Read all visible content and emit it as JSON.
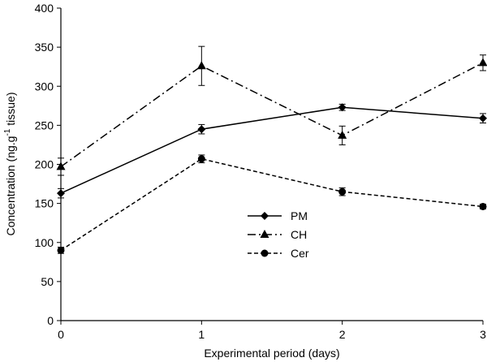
{
  "chart_data": {
    "type": "line",
    "title": "",
    "xlabel": "Experimental period (days)",
    "ylabel_parts": [
      "Concentration (ng.g",
      "-1",
      " tissue)"
    ],
    "x": [
      0,
      1,
      2,
      3
    ],
    "xlim": [
      0,
      3
    ],
    "ylim": [
      0,
      400
    ],
    "x_ticks": [
      "0",
      "1",
      "2",
      "3"
    ],
    "y_ticks": [
      "0",
      "50",
      "100",
      "150",
      "200",
      "250",
      "300",
      "350",
      "400"
    ],
    "grid": false,
    "legend_position": "center",
    "series": [
      {
        "name": "PM",
        "marker": "diamond",
        "dash": "solid",
        "values": [
          163,
          245,
          273,
          259
        ],
        "errors": [
          6,
          6,
          4,
          6
        ]
      },
      {
        "name": "CH",
        "marker": "triangle",
        "dash": "dashdot",
        "values": [
          197,
          326,
          237,
          330
        ],
        "errors": [
          11,
          25,
          12,
          10
        ]
      },
      {
        "name": "Cer",
        "marker": "circle",
        "dash": "dashed",
        "values": [
          90,
          207,
          165,
          146
        ],
        "errors": [
          4,
          5,
          5,
          3
        ]
      }
    ]
  }
}
